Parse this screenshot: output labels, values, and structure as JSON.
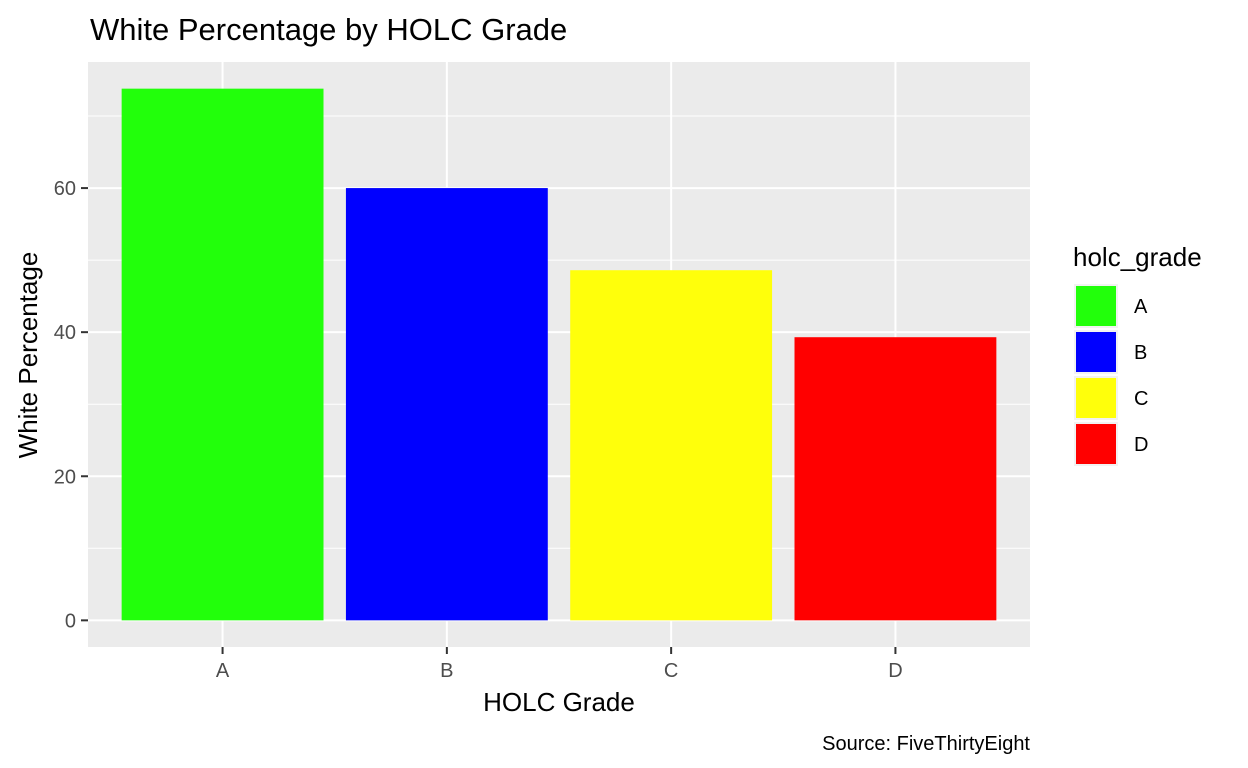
{
  "chart_data": {
    "type": "bar",
    "title": "White Percentage by HOLC Grade",
    "xlabel": "HOLC Grade",
    "ylabel": "White Percentage",
    "caption": "Source: FiveThirtyEight",
    "categories": [
      "A",
      "B",
      "C",
      "D"
    ],
    "values": [
      73.8,
      60.0,
      48.6,
      39.3
    ],
    "colors": [
      "#22ff0b",
      "#0000ff",
      "#ffff0b",
      "#ff0000"
    ],
    "ylim": [
      -3.7,
      77.5
    ],
    "yticks": [
      0,
      20,
      40,
      60
    ],
    "ytick_labels": [
      "0",
      "20",
      "40",
      "60"
    ],
    "grid": true,
    "legend": {
      "title": "holc_grade",
      "position": "right",
      "entries": [
        "A",
        "B",
        "C",
        "D"
      ]
    }
  }
}
